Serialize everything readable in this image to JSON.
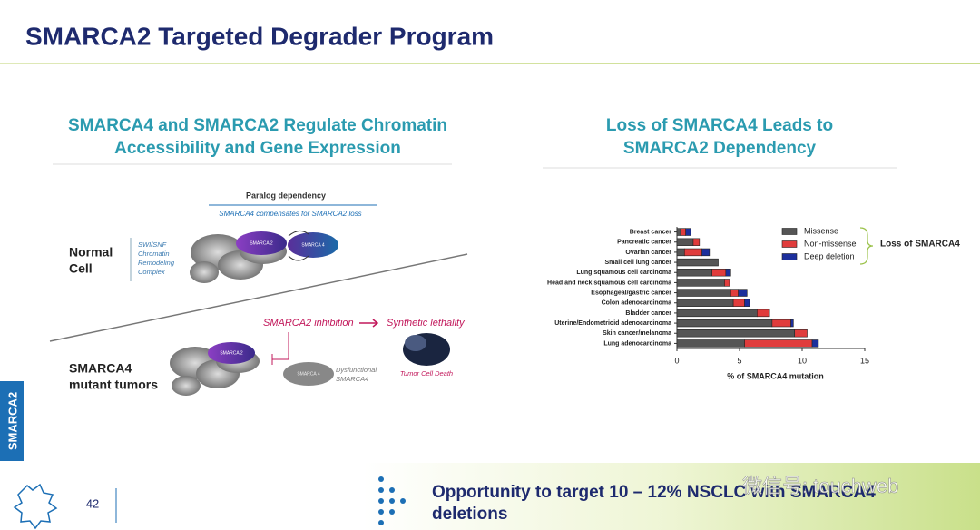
{
  "header": {
    "title": "SMARCA2 Targeted Degrader Program"
  },
  "side_tab": "SMARCA2",
  "left_panel": {
    "heading": [
      "SMARCA4 and SMARCA2 Regulate Chromatin",
      "Accessibility and Gene Expression"
    ],
    "paralog_title": "Paralog dependency",
    "paralog_subtitle": "SMARCA4 compensates for SMARCA2 loss",
    "normal_cell": [
      "Normal",
      "Cell"
    ],
    "complex_label": [
      "SWI/SNF",
      "Chromatin",
      "Remodeling",
      "Complex"
    ],
    "blob_a2": "SMARCA 2",
    "blob_a4": "SMARCA 4",
    "mutant_label": [
      "SMARCA4",
      "mutant tumors"
    ],
    "blob_a2_mutant": "SMARCA 2",
    "blob_a4_dys": "SMARCA 4",
    "inhibition": "SMARCA2 inhibition",
    "lethality": "Synthetic lethality",
    "dysfunctional": [
      "Dysfunctional",
      "SMARCA4"
    ],
    "death": "Tumor Cell Death"
  },
  "chart_data": {
    "type": "bar",
    "orientation": "horizontal",
    "stacked": true,
    "title": [
      "Loss of SMARCA4 Leads to",
      "SMARCA2 Dependency"
    ],
    "categories": [
      "Breast cancer",
      "Pancreatic cancer",
      "Ovarian cancer",
      "Small cell lung cancer",
      "Lung squamous cell carcinoma",
      "Head and neck squamous cell carcinoma",
      "Esophageal/gastric cancer",
      "Colon adenocarcinoma",
      "Bladder cancer",
      "Uterine/Endometrioid adenocarcinoma",
      "Skin cancer/melanoma",
      "Lung adenocarcinoma"
    ],
    "series": [
      {
        "name": "Missense",
        "color": "#555555",
        "values": [
          0.3,
          1.3,
          0.6,
          3.3,
          2.8,
          3.8,
          4.3,
          4.5,
          6.4,
          7.6,
          9.4,
          5.4
        ]
      },
      {
        "name": "Non-missense",
        "color": "#e03c3c",
        "values": [
          0.4,
          0.5,
          1.4,
          0,
          1.1,
          0.4,
          0.6,
          0.9,
          1.0,
          1.5,
          1.0,
          5.4
        ]
      },
      {
        "name": "Deep deletion",
        "color": "#1c2f9c",
        "values": [
          0.4,
          0,
          0.6,
          0,
          0.4,
          0,
          0.7,
          0.4,
          0,
          0.2,
          0,
          0.5
        ]
      }
    ],
    "xlabel": "% of SMARCA4 mutation",
    "xlim": [
      0,
      15
    ],
    "xticks": [
      0,
      5,
      10,
      15
    ],
    "legend_position": "upper right",
    "legend_bracket": "Loss of SMARCA4"
  },
  "footer": {
    "page": "42",
    "banner": [
      "Opportunity to target 10 – 12% NSCLC with SMARCA4",
      "deletions"
    ],
    "watermark": "微信号: touchweb"
  }
}
